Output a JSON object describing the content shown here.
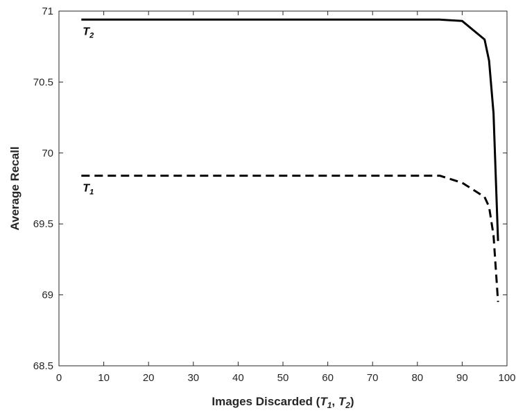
{
  "chart_data": {
    "type": "line",
    "title": "",
    "xlabel": {
      "prefix": "Images Discarded (",
      "var1": "T",
      "sub1": "1",
      "sep": ", ",
      "var2": "T",
      "sub2": "2",
      "suffix": ")"
    },
    "ylabel": "Average Recall",
    "xlim": [
      0,
      100
    ],
    "ylim": [
      68.5,
      71
    ],
    "xticks": [
      0,
      10,
      20,
      30,
      40,
      50,
      60,
      70,
      80,
      90,
      100
    ],
    "yticks": [
      68.5,
      69,
      69.5,
      70,
      70.5,
      71
    ],
    "ytick_labels": [
      "68.5",
      "69",
      "69.5",
      "70",
      "70.5",
      "71"
    ],
    "grid": false,
    "series": [
      {
        "label_var": "T",
        "label_sub": "2",
        "style": "solid",
        "color": "#000000",
        "x": [
          5,
          10,
          20,
          30,
          40,
          50,
          60,
          70,
          80,
          85,
          90,
          95,
          96,
          97,
          98
        ],
        "y": [
          70.94,
          70.94,
          70.94,
          70.94,
          70.94,
          70.94,
          70.94,
          70.94,
          70.94,
          70.94,
          70.93,
          70.8,
          70.65,
          70.28,
          69.38
        ]
      },
      {
        "label_var": "T",
        "label_sub": "1",
        "style": "dashed",
        "color": "#000000",
        "x": [
          5,
          10,
          20,
          30,
          40,
          50,
          60,
          70,
          80,
          85,
          90,
          95,
          96,
          97,
          98
        ],
        "y": [
          69.84,
          69.84,
          69.84,
          69.84,
          69.84,
          69.84,
          69.84,
          69.84,
          69.84,
          69.84,
          69.79,
          69.69,
          69.62,
          69.42,
          68.95
        ]
      }
    ]
  }
}
